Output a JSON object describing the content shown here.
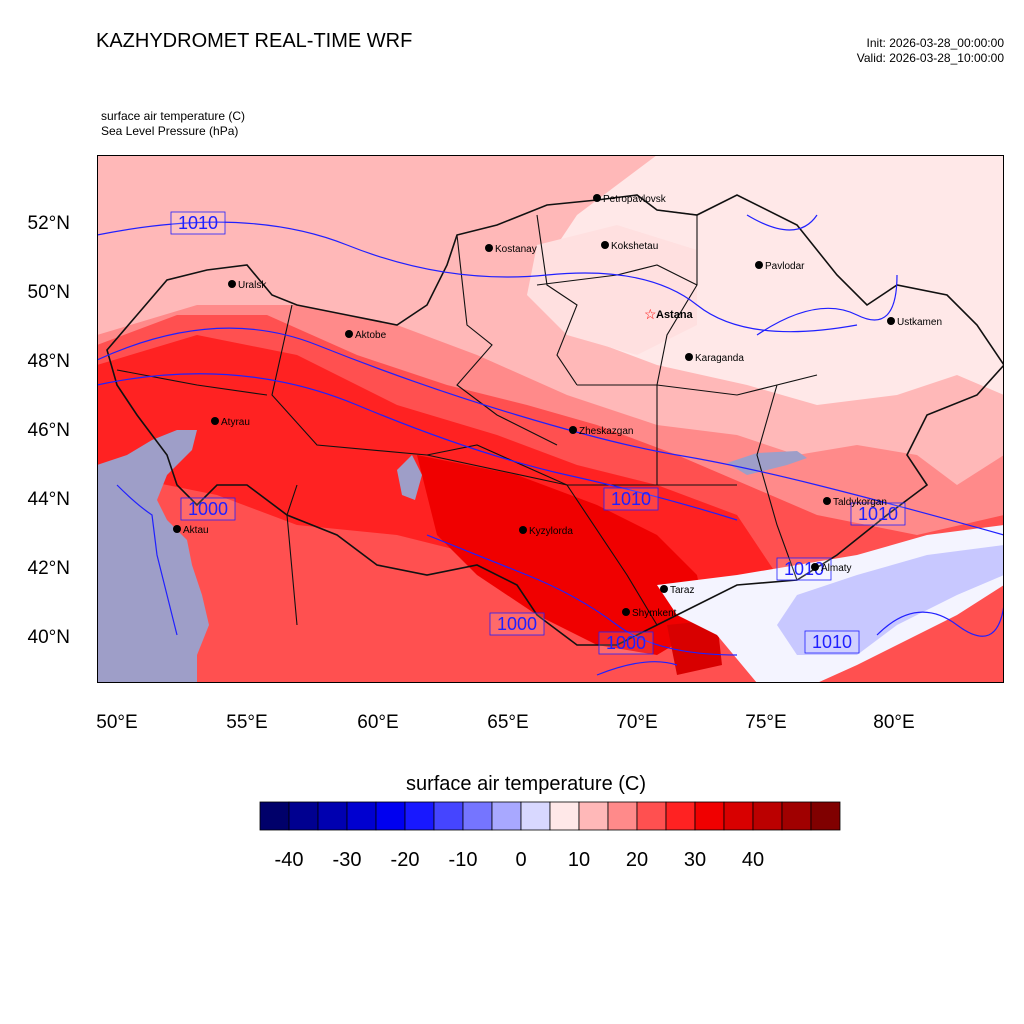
{
  "header": {
    "title": "KAZHYDROMET REAL-TIME WRF",
    "init": "Init: 2026-03-28_00:00:00",
    "valid": "Valid: 2026-03-28_10:00:00"
  },
  "fields": {
    "line1": "surface air temperature   (C)",
    "line2": "Sea Level Pressure   (hPa)"
  },
  "axes": {
    "lat_labels": [
      "52°N",
      "50°N",
      "48°N",
      "46°N",
      "44°N",
      "42°N",
      "40°N"
    ],
    "lon_labels": [
      "50°E",
      "55°E",
      "60°E",
      "65°E",
      "70°E",
      "75°E",
      "80°E"
    ]
  },
  "cities": [
    {
      "name": "Petropavlovsk",
      "capital": false
    },
    {
      "name": "Kostanay",
      "capital": false
    },
    {
      "name": "Kokshetau",
      "capital": false
    },
    {
      "name": "Pavlodar",
      "capital": false
    },
    {
      "name": "Uralsk",
      "capital": false
    },
    {
      "name": "Aktobe",
      "capital": false
    },
    {
      "name": "Astana",
      "capital": true
    },
    {
      "name": "Ustkamen",
      "capital": false
    },
    {
      "name": "Karaganda",
      "capital": false
    },
    {
      "name": "Atyrau",
      "capital": false
    },
    {
      "name": "Zheskazgan",
      "capital": false
    },
    {
      "name": "Aktau",
      "capital": false
    },
    {
      "name": "Kyzylorda",
      "capital": false
    },
    {
      "name": "Taldykorgan",
      "capital": false
    },
    {
      "name": "Almaty",
      "capital": false
    },
    {
      "name": "Taraz",
      "capital": false
    },
    {
      "name": "Shymkent",
      "capital": false
    }
  ],
  "isobar_labels": [
    "1010",
    "1000",
    "1010",
    "1010",
    "1010",
    "1000",
    "1000",
    "1010"
  ],
  "colorbar": {
    "title": "surface air temperature  (C)",
    "tick_labels": [
      "-40",
      "-30",
      "-20",
      "-10",
      "0",
      "10",
      "20",
      "30",
      "40"
    ],
    "colors": [
      "#00006a",
      "#000090",
      "#0000b0",
      "#0000d0",
      "#0000f0",
      "#1818ff",
      "#4545ff",
      "#7575ff",
      "#a8a8ff",
      "#d8d8ff",
      "#ffe8e8",
      "#ffb8b8",
      "#ff8a8a",
      "#ff5050",
      "#ff2222",
      "#f00000",
      "#d80000",
      "#bb0000",
      "#a00000",
      "#800000"
    ]
  },
  "style": {
    "isobar_color": "#2020ff",
    "border_color": "#111111",
    "capital_marker_color": "#ff0000"
  }
}
